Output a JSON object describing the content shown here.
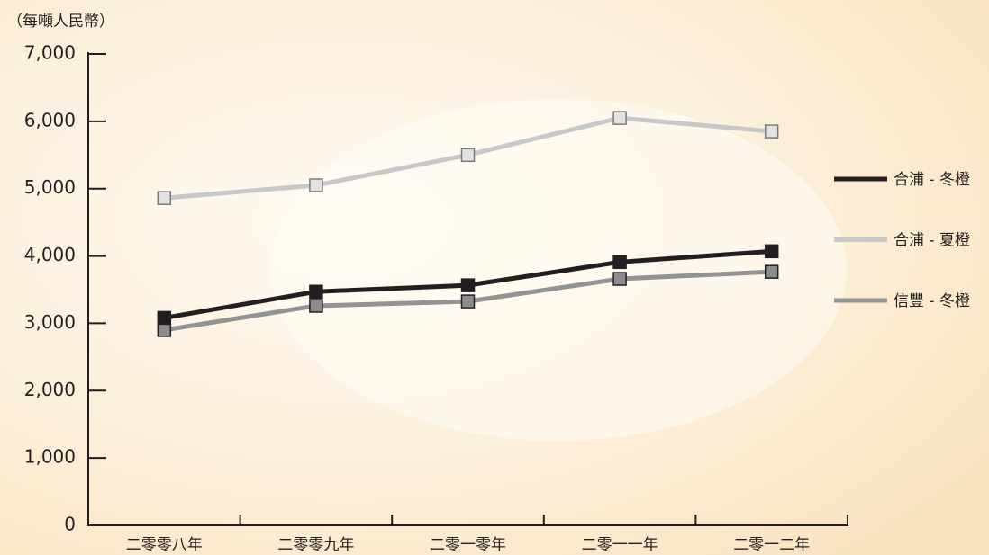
{
  "chart_data": {
    "type": "line",
    "ylabel": "（每噸人民幣）",
    "categories": [
      "二零零八年",
      "二零零九年",
      "二零一零年",
      "二零一一年",
      "二零一二年"
    ],
    "series": [
      {
        "name": "合浦 - 冬橙",
        "color": "#231f20",
        "marker_fill": "#231f20",
        "values": [
          3080,
          3470,
          3565,
          3910,
          4070
        ]
      },
      {
        "name": "合浦 - 夏橙",
        "color": "#c8c8c8",
        "marker_fill": "#e2e2e2",
        "values": [
          4860,
          5050,
          5500,
          6050,
          5850
        ]
      },
      {
        "name": "信豐 - 冬橙",
        "color": "#939393",
        "marker_fill": "#8c8c8c",
        "values": [
          2900,
          3260,
          3325,
          3660,
          3765
        ]
      }
    ],
    "ylim": [
      0,
      7000
    ],
    "yticks": [
      0,
      {
        "value": 1000,
        "label": "1,000"
      },
      {
        "value": 2000,
        "label": "2,000"
      },
      {
        "value": 3000,
        "label": "3,000"
      },
      {
        "value": 4000,
        "label": "4,000"
      },
      {
        "value": 5000,
        "label": "5,000"
      },
      {
        "value": 6000,
        "label": "6,000"
      },
      {
        "value": 7000,
        "label": "7,000"
      }
    ],
    "legend": "right"
  }
}
